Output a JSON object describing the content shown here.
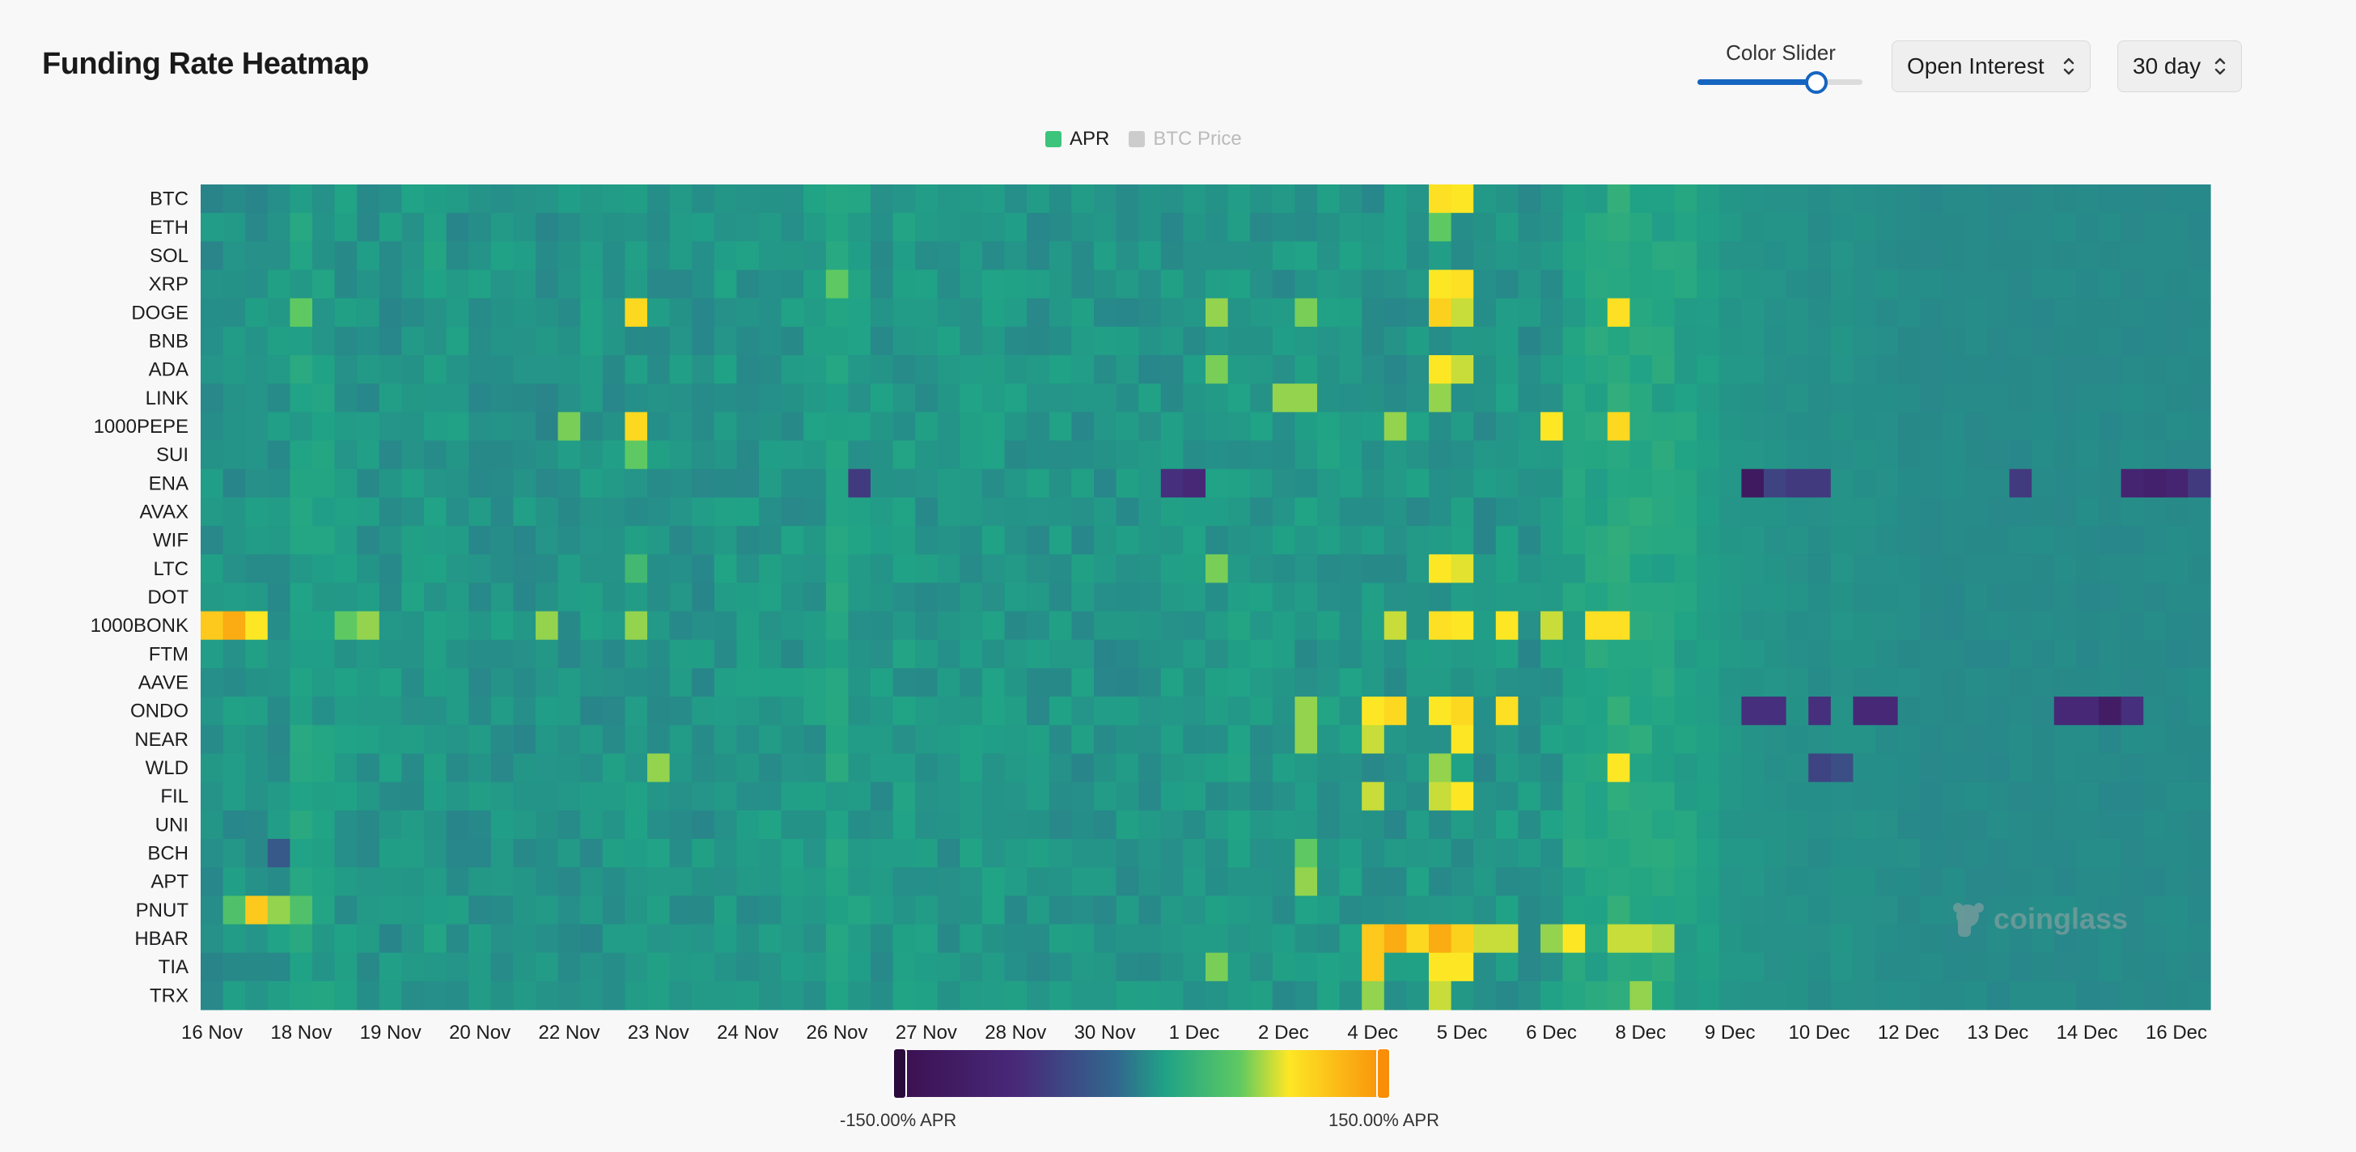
{
  "title": "Funding Rate Heatmap",
  "controls": {
    "slider_label": "Color Slider",
    "slider_value": 0.72,
    "metric_select": "Open Interest",
    "range_select": "30 day"
  },
  "legend": [
    {
      "label": "APR",
      "color": "#3cc47c",
      "active": true
    },
    {
      "label": "BTC Price",
      "color": "#cccccc",
      "active": false
    }
  ],
  "watermark": "coinglass",
  "colors": {
    "scale": [
      "#3b0f4f",
      "#3b528b",
      "#21908d",
      "#27a884",
      "#5ec962",
      "#fde725",
      "#f98e09"
    ]
  },
  "chart_data": {
    "type": "heatmap",
    "title": "Funding Rate Heatmap",
    "rows": [
      "BTC",
      "ETH",
      "SOL",
      "XRP",
      "DOGE",
      "BNB",
      "ADA",
      "LINK",
      "1000PEPE",
      "SUI",
      "ENA",
      "AVAX",
      "WIF",
      "LTC",
      "DOT",
      "1000BONK",
      "FTM",
      "AAVE",
      "ONDO",
      "NEAR",
      "WLD",
      "FIL",
      "UNI",
      "BCH",
      "APT",
      "PNUT",
      "HBAR",
      "TIA",
      "TRX"
    ],
    "x_tick_labels": [
      "16 Nov",
      "18 Nov",
      "19 Nov",
      "20 Nov",
      "22 Nov",
      "23 Nov",
      "24 Nov",
      "26 Nov",
      "27 Nov",
      "28 Nov",
      "30 Nov",
      "1 Dec",
      "2 Dec",
      "4 Dec",
      "5 Dec",
      "6 Dec",
      "8 Dec",
      "9 Dec",
      "10 Dec",
      "12 Dec",
      "13 Dec",
      "14 Dec",
      "16 Dec"
    ],
    "periods": 90,
    "value_unit": "% APR",
    "color_range": [
      -150,
      150
    ],
    "colorbar_labels": [
      "-150.00% APR",
      "150.00% APR"
    ],
    "baseline": [
      4,
      5,
      5,
      6,
      14,
      10,
      7,
      5,
      5,
      7,
      8,
      5,
      5,
      6,
      5,
      4,
      4,
      5,
      5,
      6,
      6,
      5,
      5,
      7,
      6,
      7,
      6,
      8,
      15,
      9,
      6,
      8,
      6,
      6,
      7,
      8,
      6,
      5,
      6,
      5,
      4,
      5,
      5,
      5,
      6,
      7,
      8,
      6,
      6,
      7,
      8,
      7,
      6,
      5,
      6,
      5,
      6,
      5,
      6,
      5,
      8,
      14,
      16,
      22,
      18,
      16,
      14,
      12,
      8,
      7,
      6,
      5,
      4,
      6,
      5,
      4,
      3,
      2,
      2,
      2,
      2,
      2,
      2,
      2,
      2,
      2,
      2,
      2,
      2,
      2
    ],
    "hotspots": [
      {
        "row": "BTC",
        "col": 55,
        "value": 95
      },
      {
        "row": "BTC",
        "col": 56,
        "value": 90
      },
      {
        "row": "ETH",
        "col": 55,
        "value": 60
      },
      {
        "row": "XRP",
        "col": 28,
        "value": 60
      },
      {
        "row": "XRP",
        "col": 55,
        "value": 90
      },
      {
        "row": "XRP",
        "col": 56,
        "value": 95
      },
      {
        "row": "DOGE",
        "col": 4,
        "value": 60
      },
      {
        "row": "DOGE",
        "col": 19,
        "value": 100
      },
      {
        "row": "DOGE",
        "col": 45,
        "value": 70
      },
      {
        "row": "DOGE",
        "col": 49,
        "value": 65
      },
      {
        "row": "DOGE",
        "col": 55,
        "value": 105
      },
      {
        "row": "DOGE",
        "col": 56,
        "value": 80
      },
      {
        "row": "DOGE",
        "col": 63,
        "value": 95
      },
      {
        "row": "ADA",
        "col": 45,
        "value": 65
      },
      {
        "row": "ADA",
        "col": 55,
        "value": 90
      },
      {
        "row": "ADA",
        "col": 56,
        "value": 80
      },
      {
        "row": "LINK",
        "col": 48,
        "value": 70
      },
      {
        "row": "LINK",
        "col": 49,
        "value": 70
      },
      {
        "row": "LINK",
        "col": 55,
        "value": 70
      },
      {
        "row": "1000PEPE",
        "col": 16,
        "value": 65
      },
      {
        "row": "1000PEPE",
        "col": 19,
        "value": 100
      },
      {
        "row": "1000PEPE",
        "col": 53,
        "value": 70
      },
      {
        "row": "1000PEPE",
        "col": 60,
        "value": 90
      },
      {
        "row": "1000PEPE",
        "col": 63,
        "value": 100
      },
      {
        "row": "SUI",
        "col": 19,
        "value": 60
      },
      {
        "row": "ENA",
        "col": 29,
        "value": -60
      },
      {
        "row": "ENA",
        "col": 43,
        "value": -70
      },
      {
        "row": "ENA",
        "col": 44,
        "value": -80
      },
      {
        "row": "ENA",
        "col": 69,
        "value": -120
      },
      {
        "row": "ENA",
        "col": 70,
        "value": -50
      },
      {
        "row": "ENA",
        "col": 71,
        "value": -60
      },
      {
        "row": "ENA",
        "col": 72,
        "value": -60
      },
      {
        "row": "ENA",
        "col": 81,
        "value": -60
      },
      {
        "row": "ENA",
        "col": 86,
        "value": -90
      },
      {
        "row": "ENA",
        "col": 87,
        "value": -100
      },
      {
        "row": "ENA",
        "col": 88,
        "value": -90
      },
      {
        "row": "ENA",
        "col": 89,
        "value": -60
      },
      {
        "row": "LTC",
        "col": 19,
        "value": 40
      },
      {
        "row": "LTC",
        "col": 45,
        "value": 65
      },
      {
        "row": "LTC",
        "col": 55,
        "value": 90
      },
      {
        "row": "LTC",
        "col": 56,
        "value": 85
      },
      {
        "row": "1000BONK",
        "col": 0,
        "value": 110
      },
      {
        "row": "1000BONK",
        "col": 1,
        "value": 130
      },
      {
        "row": "1000BONK",
        "col": 2,
        "value": 90
      },
      {
        "row": "1000BONK",
        "col": 6,
        "value": 60
      },
      {
        "row": "1000BONK",
        "col": 7,
        "value": 70
      },
      {
        "row": "1000BONK",
        "col": 15,
        "value": 70
      },
      {
        "row": "1000BONK",
        "col": 19,
        "value": 70
      },
      {
        "row": "1000BONK",
        "col": 53,
        "value": 80
      },
      {
        "row": "1000BONK",
        "col": 55,
        "value": 95
      },
      {
        "row": "1000BONK",
        "col": 56,
        "value": 90
      },
      {
        "row": "1000BONK",
        "col": 58,
        "value": 90
      },
      {
        "row": "1000BONK",
        "col": 60,
        "value": 80
      },
      {
        "row": "1000BONK",
        "col": 62,
        "value": 95
      },
      {
        "row": "1000BONK",
        "col": 63,
        "value": 95
      },
      {
        "row": "ONDO",
        "col": 49,
        "value": 70
      },
      {
        "row": "ONDO",
        "col": 52,
        "value": 90
      },
      {
        "row": "ONDO",
        "col": 53,
        "value": 100
      },
      {
        "row": "ONDO",
        "col": 55,
        "value": 90
      },
      {
        "row": "ONDO",
        "col": 56,
        "value": 100
      },
      {
        "row": "ONDO",
        "col": 58,
        "value": 95
      },
      {
        "row": "ONDO",
        "col": 69,
        "value": -70
      },
      {
        "row": "ONDO",
        "col": 70,
        "value": -70
      },
      {
        "row": "ONDO",
        "col": 72,
        "value": -70
      },
      {
        "row": "ONDO",
        "col": 74,
        "value": -80
      },
      {
        "row": "ONDO",
        "col": 75,
        "value": -80
      },
      {
        "row": "ONDO",
        "col": 83,
        "value": -80
      },
      {
        "row": "ONDO",
        "col": 84,
        "value": -80
      },
      {
        "row": "ONDO",
        "col": 85,
        "value": -110
      },
      {
        "row": "ONDO",
        "col": 86,
        "value": -70
      },
      {
        "row": "NEAR",
        "col": 49,
        "value": 70
      },
      {
        "row": "NEAR",
        "col": 52,
        "value": 80
      },
      {
        "row": "NEAR",
        "col": 56,
        "value": 90
      },
      {
        "row": "WLD",
        "col": 20,
        "value": 70
      },
      {
        "row": "WLD",
        "col": 55,
        "value": 70
      },
      {
        "row": "WLD",
        "col": 63,
        "value": 90
      },
      {
        "row": "WLD",
        "col": 72,
        "value": -50
      },
      {
        "row": "WLD",
        "col": 73,
        "value": -40
      },
      {
        "row": "FIL",
        "col": 52,
        "value": 80
      },
      {
        "row": "FIL",
        "col": 55,
        "value": 80
      },
      {
        "row": "FIL",
        "col": 56,
        "value": 90
      },
      {
        "row": "BCH",
        "col": 3,
        "value": -30
      },
      {
        "row": "BCH",
        "col": 49,
        "value": 60
      },
      {
        "row": "APT",
        "col": 49,
        "value": 70
      },
      {
        "row": "PNUT",
        "col": 1,
        "value": 50
      },
      {
        "row": "PNUT",
        "col": 2,
        "value": 110
      },
      {
        "row": "PNUT",
        "col": 3,
        "value": 70
      },
      {
        "row": "PNUT",
        "col": 4,
        "value": 50
      },
      {
        "row": "HBAR",
        "col": 52,
        "value": 110
      },
      {
        "row": "HBAR",
        "col": 53,
        "value": 130
      },
      {
        "row": "HBAR",
        "col": 54,
        "value": 100
      },
      {
        "row": "HBAR",
        "col": 55,
        "value": 130
      },
      {
        "row": "HBAR",
        "col": 56,
        "value": 105
      },
      {
        "row": "HBAR",
        "col": 57,
        "value": 80
      },
      {
        "row": "HBAR",
        "col": 58,
        "value": 80
      },
      {
        "row": "HBAR",
        "col": 60,
        "value": 70
      },
      {
        "row": "HBAR",
        "col": 61,
        "value": 90
      },
      {
        "row": "HBAR",
        "col": 63,
        "value": 80
      },
      {
        "row": "HBAR",
        "col": 64,
        "value": 80
      },
      {
        "row": "HBAR",
        "col": 65,
        "value": 75
      },
      {
        "row": "TIA",
        "col": 45,
        "value": 65
      },
      {
        "row": "TIA",
        "col": 52,
        "value": 110
      },
      {
        "row": "TIA",
        "col": 55,
        "value": 90
      },
      {
        "row": "TIA",
        "col": 56,
        "value": 90
      },
      {
        "row": "TRX",
        "col": 52,
        "value": 70
      },
      {
        "row": "TRX",
        "col": 55,
        "value": 80
      },
      {
        "row": "TRX",
        "col": 64,
        "value": 70
      }
    ]
  }
}
